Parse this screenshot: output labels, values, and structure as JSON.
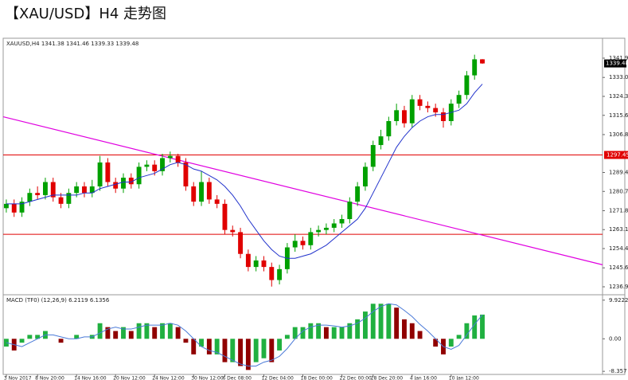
{
  "chart_data": {
    "type": "candlestick",
    "title": "【XAU/USD】H4 走势图",
    "symbol": "XAUUSD,H4",
    "categories": [
      "3 Nov 2017",
      null,
      null,
      null,
      "8 Nov 20:00",
      null,
      null,
      null,
      null,
      "14 Nov 16:00",
      null,
      null,
      null,
      null,
      "20 Nov 12:00",
      null,
      null,
      null,
      null,
      "24 Nov 12:00",
      null,
      null,
      null,
      null,
      "30 Nov 12:00",
      null,
      null,
      null,
      "6 Dec 08:00",
      null,
      null,
      null,
      null,
      "12 Dec 04:00",
      null,
      null,
      null,
      null,
      "18 Dec 00:00",
      null,
      null,
      null,
      null,
      "22 Dec 00:00",
      null,
      null,
      null,
      "28 Dec 20:00",
      null,
      null,
      null,
      null,
      "4 Jan 16:00",
      null,
      null,
      null,
      null,
      "10 Jan 12:00",
      null,
      null,
      null,
      null
    ],
    "xlim": [
      -0.4,
      76.4
    ],
    "open": [
      1273,
      1275,
      1271,
      1276,
      1280,
      1279,
      1285,
      1278,
      1275,
      1280,
      1283,
      1280,
      1283,
      1294,
      1285,
      1282,
      1287,
      1284,
      1292,
      1293,
      1290,
      1296,
      1297,
      1294,
      1283,
      1276,
      1285,
      1277,
      1275,
      1263,
      1262,
      1252,
      1246,
      1249,
      1246,
      1240,
      1245,
      1255,
      1258,
      1256,
      1262,
      1263,
      1264,
      1266,
      1268,
      1276,
      1283,
      1292,
      1302,
      1306,
      1313,
      1318,
      1312,
      1323,
      1320,
      1319,
      1317,
      1313,
      1321,
      1325,
      1334,
      1341.38
    ],
    "high": [
      1277,
      1277,
      1278,
      1282,
      1283,
      1287,
      1287,
      1280,
      1282,
      1285,
      1285,
      1286,
      1297,
      1296,
      1287,
      1289,
      1289,
      1294,
      1295,
      1295,
      1298,
      1299,
      1298,
      1296,
      1285,
      1290,
      1287,
      1279,
      1277,
      1265,
      1264,
      1254,
      1251,
      1251,
      1248,
      1247,
      1257,
      1261,
      1260,
      1264,
      1265,
      1266,
      1268,
      1270,
      1278,
      1285,
      1294,
      1304,
      1309,
      1315,
      1321,
      1320,
      1325,
      1325,
      1322,
      1321,
      1319,
      1323,
      1327,
      1336,
      1343.5,
      1341.46
    ],
    "low": [
      1271,
      1269,
      1269,
      1274,
      1277,
      1277,
      1276,
      1273,
      1273,
      1278,
      1278,
      1278,
      1281,
      1283,
      1280,
      1280,
      1282,
      1282,
      1290,
      1288,
      1288,
      1294,
      1292,
      1281,
      1274,
      1274,
      1275,
      1273,
      1261,
      1260,
      1250,
      1244,
      1244,
      1244,
      1237,
      1238,
      1243,
      1253,
      1254,
      1254,
      1260,
      1261,
      1262,
      1264,
      1266,
      1274,
      1281,
      1290,
      1300,
      1304,
      1311,
      1310,
      1310,
      1318,
      1317,
      1315,
      1310,
      1311,
      1319,
      1323,
      1332,
      1339.33
    ],
    "close": [
      1275,
      1271,
      1276,
      1280,
      1279,
      1285,
      1278,
      1275,
      1280,
      1283,
      1280,
      1283,
      1294,
      1285,
      1282,
      1287,
      1284,
      1292,
      1293,
      1290,
      1296,
      1297,
      1294,
      1283,
      1276,
      1285,
      1277,
      1275,
      1263,
      1262,
      1252,
      1246,
      1249,
      1246,
      1240,
      1245,
      1255,
      1258,
      1256,
      1262,
      1263,
      1264,
      1266,
      1268,
      1276,
      1283,
      1292,
      1302,
      1306,
      1313,
      1318,
      1312,
      1323,
      1320,
      1319,
      1317,
      1313,
      1321,
      1325,
      1334,
      1341.38,
      1339.48
    ],
    "up_color": "#00a000",
    "down_color": "#e00000",
    "ma": {
      "color": "#2233cc",
      "values": [
        1275,
        1275,
        1275,
        1276,
        1277,
        1278,
        1279,
        1279,
        1279,
        1279,
        1280,
        1280,
        1282,
        1283,
        1284,
        1285,
        1285,
        1287,
        1288,
        1289,
        1291,
        1293,
        1294,
        1293,
        1291,
        1290,
        1288,
        1286,
        1283,
        1279,
        1274,
        1268,
        1263,
        1258,
        1254,
        1251,
        1250,
        1250,
        1251,
        1252,
        1254,
        1256,
        1259,
        1262,
        1265,
        1268,
        1273,
        1280,
        1287,
        1294,
        1301,
        1306,
        1310,
        1313,
        1315,
        1316,
        1316,
        1317,
        1318,
        1321,
        1326,
        1330
      ]
    },
    "ylim": [
      1233.24,
      1351.05
    ],
    "yticks": [
      {
        "value": 1341.9,
        "label": "1341.90"
      },
      1333.05,
      1324.35,
      1315.65,
      {
        "value": 1306.8,
        "label": "1306.80"
      },
      {
        "value": 1289.4,
        "label": "1289.40"
      },
      {
        "value": 1280.7,
        "label": "1280.70"
      },
      1271.85,
      1263.15,
      1254.45,
      {
        "value": 1245.6,
        "label": "1245.60"
      },
      {
        "value": 1236.9,
        "label": "1236.90"
      }
    ],
    "hlines": {
      "color": "#e00000",
      "values": [
        1297.45,
        1261
      ]
    },
    "trendline": {
      "color": "#e000e0",
      "x": [
        -0.4,
        76.4
      ],
      "values": [
        1315,
        1247
      ]
    },
    "macd": {
      "title": "MACD (TF0) (12,26,9)",
      "hist": [
        -2,
        -3,
        -1,
        1,
        1,
        2,
        0,
        -1,
        0,
        1,
        0,
        1,
        4,
        3,
        2,
        3,
        2,
        4,
        4,
        3,
        4,
        4,
        3,
        -1,
        -4,
        -2,
        -4,
        -4,
        -6,
        -6,
        -7,
        -8,
        -6,
        -5,
        -6,
        -3,
        1,
        3,
        3,
        4,
        4,
        3,
        3,
        3,
        4,
        5,
        7,
        9,
        9,
        9,
        8,
        5,
        4,
        2,
        0,
        -2,
        -4,
        -2,
        1,
        4,
        6,
        6.2119
      ],
      "signal": [
        -1,
        -1.5,
        -2,
        -1,
        0,
        1,
        1,
        0.5,
        0,
        0,
        0.5,
        0.5,
        1.5,
        2.5,
        3,
        2.5,
        2.5,
        3,
        3.5,
        3.5,
        3.5,
        4,
        3.5,
        2,
        0,
        -2,
        -3,
        -3.5,
        -4.5,
        -5.5,
        -6.5,
        -7,
        -7,
        -6,
        -5.5,
        -4.5,
        -2.5,
        0,
        2,
        3,
        3.5,
        3.5,
        3.3,
        3,
        3.3,
        4,
        5.3,
        7,
        8.3,
        9,
        8.7,
        7.3,
        5.7,
        3.7,
        2,
        0,
        -2,
        -2.7,
        -1.7,
        1,
        3.7,
        6.1356
      ],
      "up_color": "#20b040",
      "down_color": "#900000",
      "signal_color": "#4a7ad8",
      "ylim": [
        -9.15,
        10.9
      ],
      "yticks": [
        9.9222,
        {
          "value": 0,
          "label": "0.00"
        },
        -8.357
      ]
    }
  }
}
